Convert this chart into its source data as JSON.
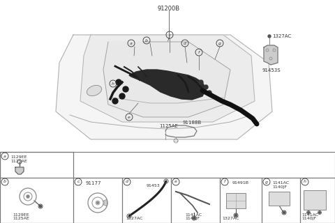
{
  "bg_color": "#ffffff",
  "line_color": "#555555",
  "text_color": "#333333",
  "border_color": "#777777",
  "main_part_number": "91200B",
  "top_right_label": "1327AC",
  "top_right_part": "91453S",
  "mid_label1": "1125AE",
  "mid_label2": "91188B",
  "panel_a_labels": [
    "1129EE",
    "1125AE"
  ],
  "panel_b_labels": [
    "1125AE",
    "1129EE"
  ],
  "panel_c_number": "91177",
  "panel_d_num": "91453",
  "panel_d_label": "1327AC",
  "panel_e_labels": [
    "1140JF",
    "1141AC"
  ],
  "panel_f_num": "91491B",
  "panel_f_label": "1327AC",
  "panel_g_labels": [
    "1141AC",
    "1140JF"
  ],
  "panel_h_labels": [
    "1140JF",
    "1141AC"
  ]
}
